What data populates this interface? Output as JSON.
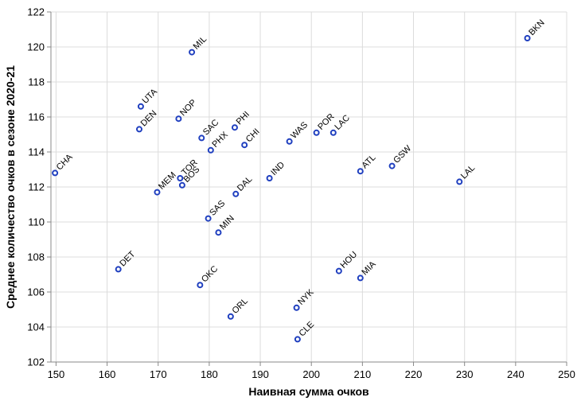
{
  "chart_data": {
    "type": "scatter",
    "xlabel": "Наивная сумма очков",
    "ylabel": "Среднее количество очков в сезоне 2020-21",
    "xlim": [
      149,
      250
    ],
    "ylim": [
      102,
      122
    ],
    "xticks": [
      150,
      160,
      170,
      180,
      190,
      200,
      210,
      220,
      230,
      240,
      250
    ],
    "yticks": [
      102,
      104,
      106,
      108,
      110,
      112,
      114,
      116,
      118,
      120,
      122
    ],
    "grid": true,
    "marker_color": "#1f3fbf",
    "points": [
      {
        "label": "BKN",
        "x": 242.3,
        "y": 120.5
      },
      {
        "label": "MIL",
        "x": 176.6,
        "y": 119.7
      },
      {
        "label": "UTA",
        "x": 166.6,
        "y": 116.6
      },
      {
        "label": "NOP",
        "x": 174.0,
        "y": 115.9
      },
      {
        "label": "DEN",
        "x": 166.3,
        "y": 115.3
      },
      {
        "label": "PHI",
        "x": 185.0,
        "y": 115.4
      },
      {
        "label": "SAC",
        "x": 178.5,
        "y": 114.8
      },
      {
        "label": "POR",
        "x": 201.0,
        "y": 115.1
      },
      {
        "label": "LAC",
        "x": 204.3,
        "y": 115.1
      },
      {
        "label": "WAS",
        "x": 195.7,
        "y": 114.6
      },
      {
        "label": "CHI",
        "x": 186.9,
        "y": 114.4
      },
      {
        "label": "PHX",
        "x": 180.3,
        "y": 114.1
      },
      {
        "label": "CHA",
        "x": 149.8,
        "y": 112.8
      },
      {
        "label": "ATL",
        "x": 209.6,
        "y": 112.9
      },
      {
        "label": "GSW",
        "x": 215.8,
        "y": 113.2
      },
      {
        "label": "LAL",
        "x": 229.0,
        "y": 112.3
      },
      {
        "label": "IND",
        "x": 191.8,
        "y": 112.5
      },
      {
        "label": "TOR",
        "x": 174.3,
        "y": 112.5
      },
      {
        "label": "BOS",
        "x": 174.7,
        "y": 112.1
      },
      {
        "label": "MEM",
        "x": 169.8,
        "y": 111.7
      },
      {
        "label": "DAL",
        "x": 185.2,
        "y": 111.6
      },
      {
        "label": "SAS",
        "x": 179.8,
        "y": 110.2
      },
      {
        "label": "MIN",
        "x": 181.8,
        "y": 109.4
      },
      {
        "label": "DET",
        "x": 162.2,
        "y": 107.3
      },
      {
        "label": "HOU",
        "x": 205.4,
        "y": 107.2
      },
      {
        "label": "MIA",
        "x": 209.6,
        "y": 106.8
      },
      {
        "label": "OKC",
        "x": 178.2,
        "y": 106.4
      },
      {
        "label": "NYK",
        "x": 197.1,
        "y": 105.1
      },
      {
        "label": "ORL",
        "x": 184.2,
        "y": 104.6
      },
      {
        "label": "CLE",
        "x": 197.3,
        "y": 103.3
      }
    ]
  }
}
